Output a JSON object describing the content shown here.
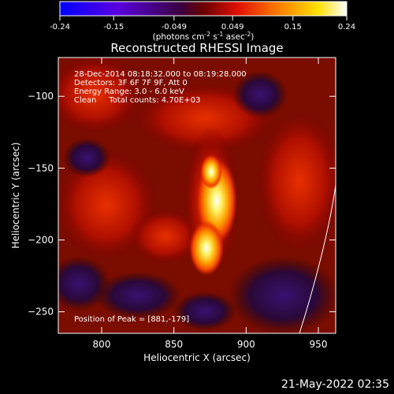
{
  "colorbar": {
    "ticks": [
      "-0.24",
      "-0.15",
      "-0.049",
      "0.049",
      "0.15",
      "0.24"
    ],
    "tick_values": [
      -0.24,
      -0.15,
      -0.049,
      0.049,
      0.15,
      0.24
    ],
    "range": [
      -0.24,
      0.24
    ],
    "unit_prefix": "(photons cm",
    "unit_exp1": "-2",
    "unit_mid": " s",
    "unit_exp2": "-1",
    "unit_mid2": " asec",
    "unit_exp3": "-2",
    "unit_suffix": ")",
    "colors": [
      "#0000ff",
      "#7a00ff",
      "#4a0060",
      "#8a0000",
      "#ff2000",
      "#ff8000",
      "#ffd800",
      "#ffffff"
    ]
  },
  "footer": {
    "timestamp": "21-May-2022 02:35"
  },
  "chart_data": {
    "type": "heatmap",
    "title": "Reconstructed RHESSI Image",
    "xlabel": "Heliocentric X (arcsec)",
    "ylabel": "Heliocentric Y (arcsec)",
    "xlim": [
      770,
      962
    ],
    "ylim": [
      -265,
      -73
    ],
    "x_ticks": [
      800,
      850,
      900,
      950
    ],
    "y_ticks": [
      -100,
      -150,
      -200,
      -250
    ],
    "x_tick_labels": [
      "800",
      "850",
      "900",
      "950"
    ],
    "y_tick_labels": [
      "−100",
      "−150",
      "−200",
      "−250"
    ],
    "annotations": [
      "28-Dec-2014 08:18:32.000 to 08:19:28.000",
      "Detectors: 3F 6F 7F 9F, Att 0",
      "Energy Range: 3.0 - 6.0 keV",
      "Clean     Total counts: 4.70E+03"
    ],
    "peak_label": "Position of Peak = [881,-179]",
    "peak": [
      881,
      -179
    ]
  }
}
